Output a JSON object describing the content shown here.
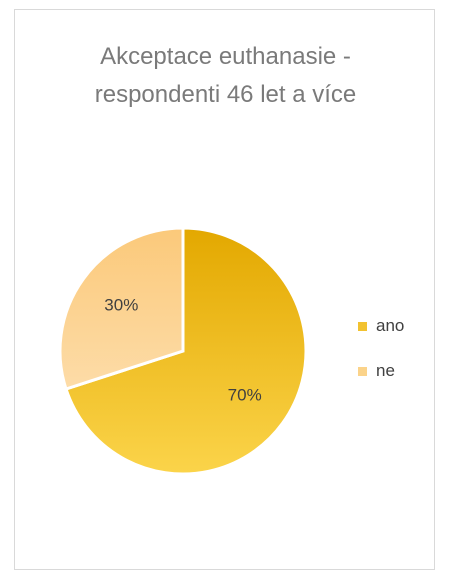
{
  "chart_data": {
    "type": "pie",
    "title": "Akceptace euthanasie - respondenti 46 let a více",
    "title_lines": [
      "Akceptace euthanasie -",
      "respondenti 46 let a více"
    ],
    "categories": [
      "ano",
      "ne"
    ],
    "values": [
      70,
      30
    ],
    "value_labels": [
      "70%",
      "30%"
    ],
    "colors": [
      "#f2c230",
      "#fbd38a"
    ],
    "legend": "right"
  }
}
